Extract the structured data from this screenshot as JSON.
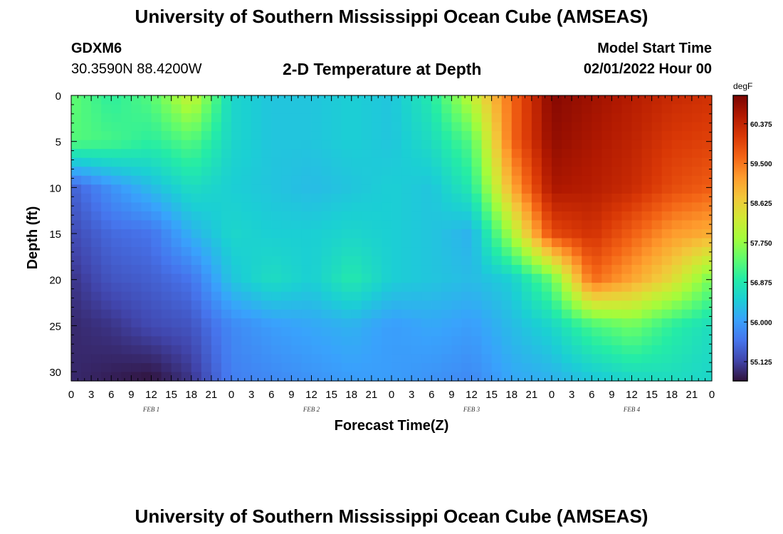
{
  "header": {
    "title": "University of Southern Mississippi Ocean Cube (AMSEAS)",
    "station_id": "GDXM6",
    "coordinates": "30.3590N  88.4200W",
    "model_start_label": "Model Start Time",
    "model_start_value": "02/01/2022 Hour 00"
  },
  "footer": {
    "title_repeat": "University of Southern Mississippi Ocean Cube (AMSEAS)"
  },
  "chart_data": {
    "type": "heatmap",
    "title": "2-D Temperature at Depth",
    "xlabel": "Forecast Time(Z)",
    "ylabel": "Depth (ft)",
    "colorbar_unit": "degF",
    "x_ticks": [
      "0",
      "3",
      "6",
      "9",
      "12",
      "15",
      "18",
      "21",
      "0",
      "3",
      "6",
      "9",
      "12",
      "15",
      "18",
      "21",
      "0",
      "3",
      "6",
      "9",
      "12",
      "15",
      "18",
      "21",
      "0",
      "3",
      "6",
      "9",
      "12",
      "15",
      "18",
      "21",
      "0"
    ],
    "x_range_hours": [
      0,
      96
    ],
    "date_labels": [
      "FEB 1",
      "FEB 2",
      "FEB 3",
      "FEB 4"
    ],
    "y_ticks": [
      "0",
      "5",
      "10",
      "15",
      "20",
      "25",
      "30"
    ],
    "y_range_ft": [
      0,
      31
    ],
    "y_inverted": true,
    "colorbar_ticks": [
      "60.375",
      "59.500",
      "58.625",
      "57.750",
      "56.875",
      "56.000",
      "55.125"
    ],
    "colorbar_range_degF": [
      54.7,
      61.0
    ],
    "colormap": [
      "#30123b",
      "#4145ab",
      "#4675ed",
      "#39a2fc",
      "#1bcfd4",
      "#24eca6",
      "#61fc6c",
      "#a4fc3b",
      "#d1e834",
      "#f3c63a",
      "#fe9b2d",
      "#f36315",
      "#d93806",
      "#b11901",
      "#7a0402"
    ],
    "hours": [
      0,
      6,
      12,
      18,
      24,
      30,
      36,
      42,
      48,
      54,
      60,
      66,
      72,
      78,
      84,
      90,
      96
    ],
    "depths_ft": [
      0,
      5,
      10,
      15,
      20,
      25,
      31
    ],
    "temperature_degF": [
      [
        57.4,
        57.0,
        57.3,
        58.2,
        56.6,
        56.4,
        56.4,
        56.5,
        56.4,
        56.9,
        58.1,
        59.6,
        60.9,
        60.7,
        60.5,
        60.3,
        60.2
      ],
      [
        57.3,
        57.2,
        57.0,
        57.3,
        56.6,
        56.4,
        56.4,
        56.5,
        56.4,
        56.7,
        57.3,
        59.6,
        60.8,
        60.6,
        60.4,
        60.1,
        60.0
      ],
      [
        55.4,
        55.9,
        56.3,
        56.7,
        56.5,
        56.4,
        56.3,
        56.4,
        56.5,
        56.4,
        56.9,
        59.0,
        60.6,
        60.5,
        60.3,
        59.9,
        59.7
      ],
      [
        55.2,
        55.5,
        55.6,
        56.2,
        56.6,
        56.5,
        56.5,
        56.6,
        56.5,
        56.4,
        56.2,
        57.9,
        59.9,
        60.2,
        59.7,
        59.2,
        59.0
      ],
      [
        55.0,
        55.3,
        55.4,
        55.6,
        56.4,
        56.7,
        56.5,
        56.9,
        56.5,
        56.4,
        56.3,
        56.5,
        57.4,
        59.6,
        59.1,
        58.5,
        57.5
      ],
      [
        54.9,
        55.0,
        55.2,
        55.3,
        55.8,
        56.0,
        56.1,
        56.2,
        56.0,
        56.1,
        56.0,
        56.3,
        56.6,
        57.2,
        57.5,
        57.0,
        56.7
      ],
      [
        54.9,
        54.8,
        54.7,
        55.0,
        55.7,
        55.8,
        55.9,
        56.0,
        56.0,
        55.9,
        55.8,
        56.1,
        56.2,
        56.4,
        56.6,
        56.7,
        56.6
      ]
    ]
  }
}
